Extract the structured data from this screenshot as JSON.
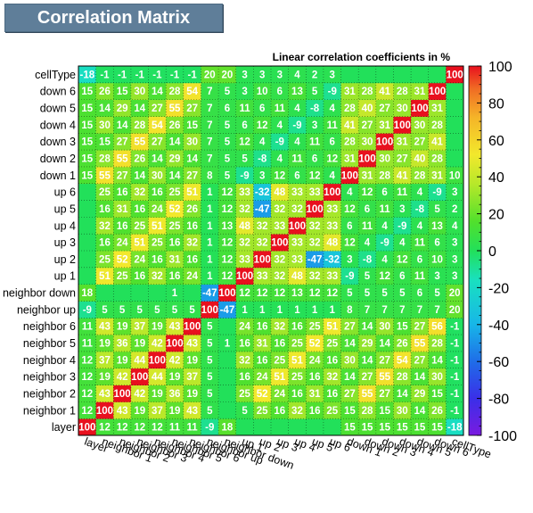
{
  "header": {
    "title": "Correlation Matrix"
  },
  "chart_data": {
    "type": "heatmap",
    "title": "Correlation Matrix",
    "subtitle": "Linear correlation coefficients in %",
    "variables": [
      "layer",
      "neighbor 1",
      "neighbor 2",
      "neighbor 3",
      "neighbor 4",
      "neighbor 5",
      "neighbor 6",
      "neighbor up",
      "neighbor down",
      "up 1",
      "up 2",
      "up 3",
      "up 4",
      "up 5",
      "up 6",
      "down 1",
      "down 2",
      "down 3",
      "down 4",
      "down 5",
      "down 6",
      "cellType"
    ],
    "zlim": [
      -100,
      100
    ],
    "colorbar_ticks": [
      -100,
      -80,
      -60,
      -40,
      -20,
      0,
      20,
      40,
      60,
      80,
      100
    ],
    "matrix": [
      [
        100,
        12,
        12,
        12,
        12,
        11,
        11,
        -9,
        18,
        null,
        null,
        null,
        null,
        null,
        null,
        15,
        15,
        15,
        15,
        15,
        15,
        -18
      ],
      [
        12,
        100,
        43,
        19,
        37,
        19,
        43,
        5,
        null,
        5,
        25,
        16,
        32,
        16,
        25,
        15,
        28,
        15,
        30,
        14,
        26,
        -1
      ],
      [
        12,
        43,
        100,
        42,
        19,
        36,
        19,
        5,
        null,
        25,
        52,
        24,
        16,
        31,
        16,
        27,
        55,
        27,
        14,
        29,
        15,
        -1
      ],
      [
        12,
        19,
        42,
        100,
        44,
        19,
        37,
        5,
        null,
        16,
        24,
        51,
        25,
        16,
        32,
        14,
        27,
        55,
        28,
        14,
        30,
        -1
      ],
      [
        12,
        37,
        19,
        44,
        100,
        42,
        19,
        5,
        null,
        32,
        16,
        25,
        51,
        24,
        16,
        30,
        14,
        27,
        54,
        27,
        14,
        -1
      ],
      [
        11,
        19,
        36,
        19,
        42,
        100,
        43,
        5,
        1,
        16,
        31,
        16,
        25,
        52,
        25,
        14,
        29,
        14,
        26,
        55,
        28,
        -1
      ],
      [
        11,
        43,
        19,
        37,
        19,
        43,
        100,
        5,
        null,
        24,
        16,
        32,
        16,
        25,
        51,
        27,
        14,
        30,
        15,
        27,
        56,
        -1
      ],
      [
        -9,
        5,
        5,
        5,
        5,
        5,
        5,
        100,
        -47,
        1,
        1,
        1,
        1,
        1,
        1,
        8,
        7,
        7,
        7,
        7,
        7,
        20
      ],
      [
        18,
        null,
        null,
        null,
        null,
        1,
        null,
        -47,
        100,
        12,
        12,
        12,
        13,
        12,
        12,
        5,
        5,
        5,
        5,
        6,
        5,
        20
      ],
      [
        null,
        51,
        25,
        16,
        32,
        16,
        24,
        1,
        12,
        100,
        33,
        32,
        48,
        32,
        33,
        -9,
        5,
        12,
        6,
        11,
        3,
        3
      ],
      [
        null,
        25,
        52,
        24,
        16,
        31,
        16,
        1,
        12,
        33,
        100,
        32,
        33,
        -47,
        -32,
        3,
        -8,
        4,
        12,
        6,
        10,
        3
      ],
      [
        null,
        16,
        24,
        51,
        25,
        16,
        32,
        1,
        12,
        32,
        32,
        100,
        33,
        32,
        48,
        12,
        4,
        -9,
        4,
        11,
        6,
        3
      ],
      [
        null,
        32,
        16,
        25,
        51,
        25,
        16,
        1,
        13,
        48,
        32,
        33,
        100,
        32,
        33,
        6,
        11,
        4,
        -9,
        4,
        13,
        4
      ],
      [
        null,
        16,
        31,
        16,
        24,
        52,
        26,
        1,
        12,
        32,
        -47,
        32,
        32,
        100,
        33,
        12,
        6,
        11,
        3,
        -8,
        5,
        2
      ],
      [
        null,
        25,
        16,
        32,
        16,
        25,
        51,
        1,
        12,
        33,
        -32,
        48,
        33,
        33,
        100,
        4,
        12,
        6,
        11,
        4,
        -9,
        3
      ],
      [
        15,
        55,
        27,
        14,
        30,
        14,
        27,
        8,
        5,
        -9,
        3,
        12,
        6,
        12,
        4,
        100,
        31,
        28,
        41,
        28,
        31,
        10
      ],
      [
        15,
        28,
        55,
        26,
        14,
        29,
        14,
        7,
        5,
        5,
        -8,
        4,
        11,
        6,
        12,
        31,
        100,
        30,
        27,
        40,
        28,
        null
      ],
      [
        15,
        15,
        27,
        55,
        27,
        14,
        30,
        7,
        5,
        12,
        4,
        -9,
        4,
        11,
        6,
        28,
        30,
        100,
        31,
        27,
        41,
        null
      ],
      [
        15,
        30,
        14,
        28,
        54,
        26,
        15,
        7,
        5,
        6,
        12,
        4,
        -9,
        3,
        11,
        41,
        27,
        31,
        100,
        30,
        28,
        null
      ],
      [
        15,
        14,
        29,
        14,
        27,
        55,
        27,
        7,
        6,
        11,
        6,
        11,
        4,
        -8,
        4,
        28,
        40,
        27,
        30,
        100,
        31,
        null
      ],
      [
        15,
        26,
        15,
        30,
        14,
        28,
        54,
        7,
        5,
        3,
        10,
        6,
        13,
        5,
        -9,
        31,
        28,
        41,
        28,
        31,
        100,
        null
      ],
      [
        -18,
        -1,
        -1,
        -1,
        -1,
        -1,
        -1,
        20,
        20,
        3,
        3,
        3,
        4,
        2,
        3,
        null,
        null,
        null,
        null,
        null,
        null,
        100
      ]
    ]
  }
}
